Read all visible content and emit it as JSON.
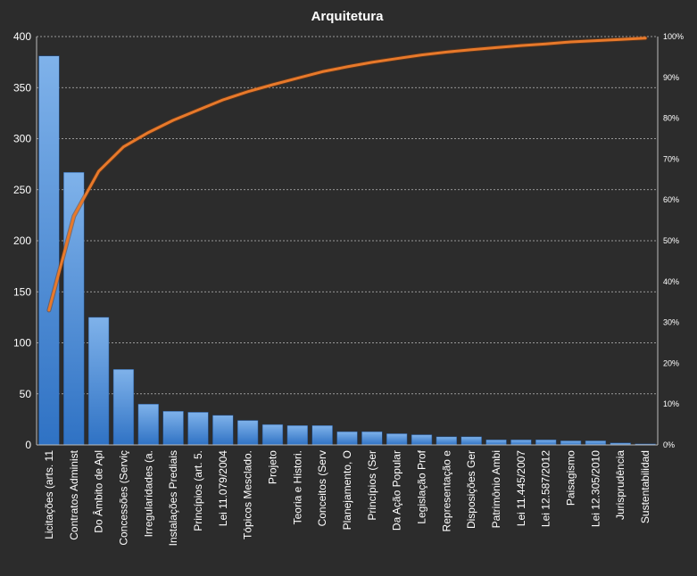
{
  "chart_data": {
    "type": "bar",
    "title": "Arquitetura",
    "categories": [
      "Licitações (arts. 11",
      "Contratos Administ",
      "Do Âmbito de Apl",
      "Concessões (Serviç",
      "Irregularidades (a.",
      "Instalações Prediais",
      "Princípios (art. 5.",
      "Lei 11.079/2004",
      "Tópicos Mesclado.",
      "Projeto",
      "Teoria e Histori.",
      "Conceitos (Serv",
      "Planejamento, O",
      "Princípios (Ser",
      "Da Ação Popular",
      "Legislação Prof",
      "Representação e",
      "Disposições Ger",
      "Patrimônio Ambi",
      "Lei 11.445/2007",
      "Lei 12.587/2012",
      "Paisagismo",
      "Lei 12.305/2010",
      "Jurisprudência",
      "Sustentabilidad"
    ],
    "series": [
      {
        "type": "bar",
        "values": [
          381,
          267,
          125,
          74,
          40,
          33,
          32,
          29,
          24,
          20,
          19,
          19,
          13,
          13,
          11,
          10,
          8,
          8,
          5,
          5,
          5,
          4,
          4,
          2,
          1
        ]
      },
      {
        "type": "line",
        "axis": "right",
        "values": [
          0.33,
          0.56,
          0.67,
          0.73,
          0.765,
          0.795,
          0.82,
          0.845,
          0.865,
          0.882,
          0.898,
          0.914,
          0.926,
          0.937,
          0.946,
          0.955,
          0.962,
          0.968,
          0.973,
          0.978,
          0.982,
          0.987,
          0.99,
          0.993,
          0.996
        ]
      }
    ],
    "y_left": {
      "min": 0,
      "max": 400,
      "ticks": [
        "0",
        "50",
        "100",
        "150",
        "200",
        "250",
        "300",
        "350",
        "400"
      ]
    },
    "y_right": {
      "min": 0,
      "max": 1,
      "ticks": [
        "0%",
        "10%",
        "20%",
        "30%",
        "40%",
        "50%",
        "60%",
        "70%",
        "80%",
        "90%",
        "100%"
      ]
    },
    "grid": true,
    "legend": "none",
    "colors": {
      "background": "#2c2c2c",
      "bar_top": "#7fb2ea",
      "bar_bottom": "#2f72c4",
      "line": "#e8792a",
      "grid": "#bdbdbd",
      "text": "#ffffff"
    }
  }
}
